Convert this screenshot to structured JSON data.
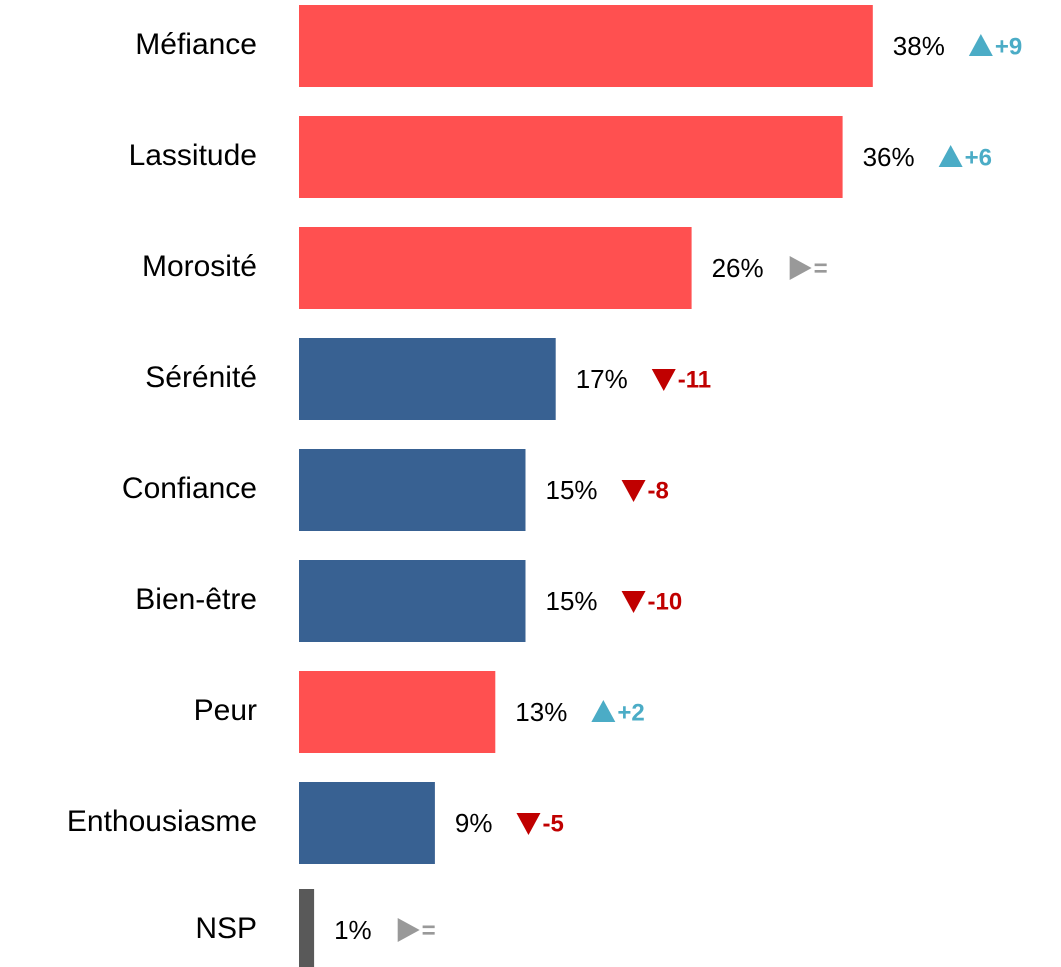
{
  "chart_data": {
    "type": "bar",
    "orientation": "horizontal",
    "categories": [
      "Méfiance",
      "Lassitude",
      "Morosité",
      "Sérénité",
      "Confiance",
      "Bien-être",
      "Peur",
      "Enthousiasme",
      "NSP"
    ],
    "values": [
      38,
      36,
      26,
      17,
      15,
      15,
      13,
      9,
      1
    ],
    "value_labels": [
      "38%",
      "36%",
      "26%",
      "17%",
      "15%",
      "15%",
      "13%",
      "9%",
      "1%"
    ],
    "colors": [
      "#ff5050",
      "#ff5050",
      "#ff5050",
      "#386192",
      "#386192",
      "#386192",
      "#ff5050",
      "#386192",
      "#595959"
    ],
    "changes": [
      {
        "value": 9,
        "label": "+9"
      },
      {
        "value": 6,
        "label": "+6"
      },
      {
        "value": 0,
        "label": "="
      },
      {
        "value": -11,
        "label": "-11"
      },
      {
        "value": -8,
        "label": "-8"
      },
      {
        "value": -10,
        "label": "-10"
      },
      {
        "value": 2,
        "label": "+2"
      },
      {
        "value": -5,
        "label": "-5"
      },
      {
        "value": 0,
        "label": "="
      }
    ]
  }
}
